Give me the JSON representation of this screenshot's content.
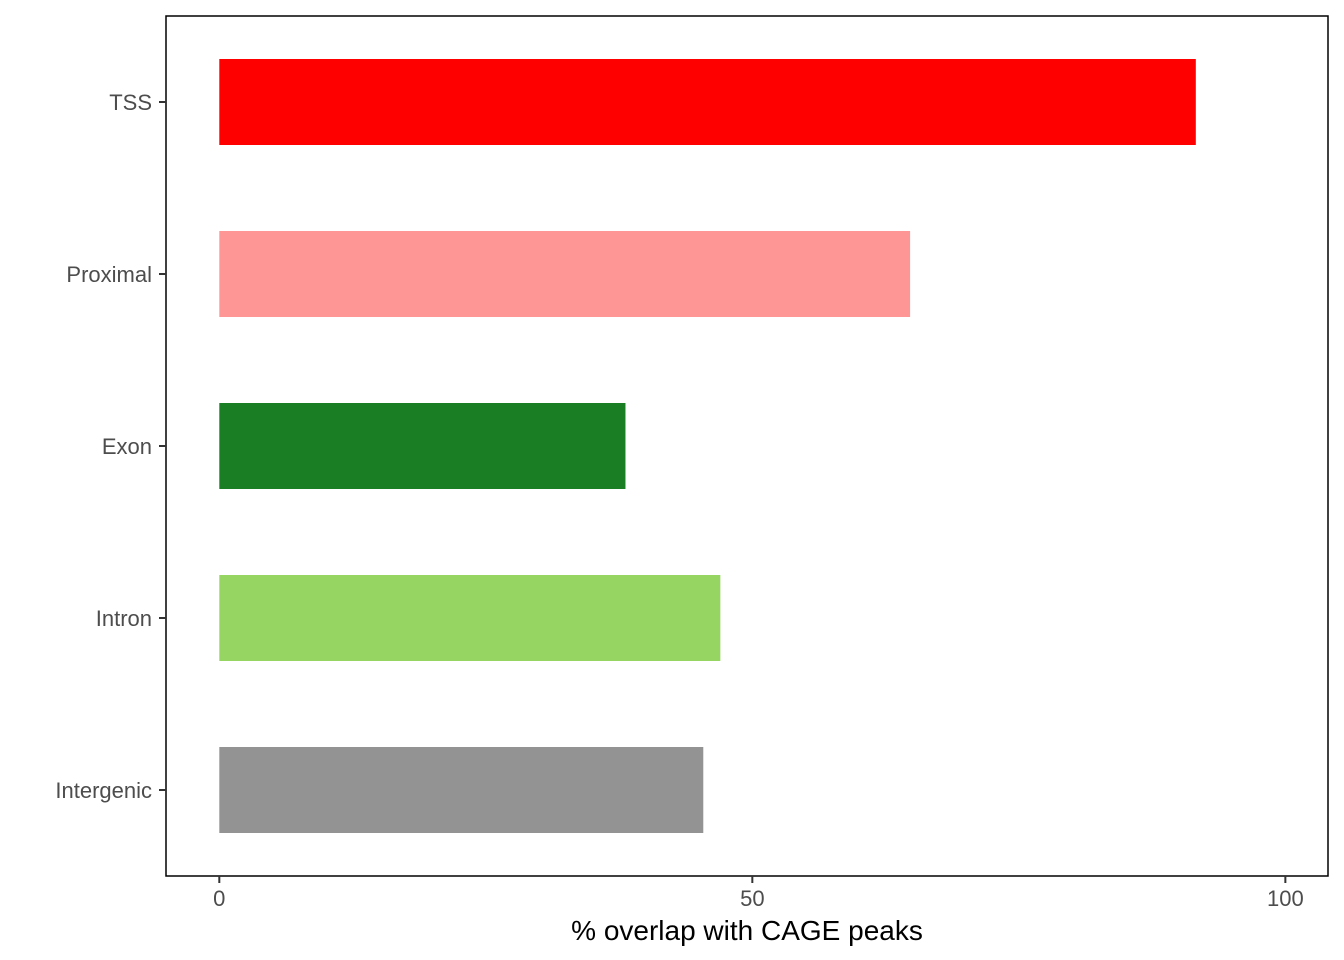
{
  "chart_data": {
    "type": "bar",
    "orientation": "horizontal",
    "categories": [
      "TSS",
      "Proximal",
      "Exon",
      "Intron",
      "Intergenic"
    ],
    "values": [
      91.6,
      64.8,
      38.1,
      47.0,
      45.4
    ],
    "colors": [
      "#ff0000",
      "#ff9696",
      "#1a7f24",
      "#96d562",
      "#939393"
    ],
    "title": "",
    "xlabel": "% overlap with CAGE peaks",
    "ylabel": "",
    "xlim": [
      -5,
      104
    ],
    "xticks": [
      0,
      50,
      100
    ],
    "xtick_labels": [
      "0",
      "50",
      "100"
    ],
    "grid": false,
    "legend": "none"
  }
}
